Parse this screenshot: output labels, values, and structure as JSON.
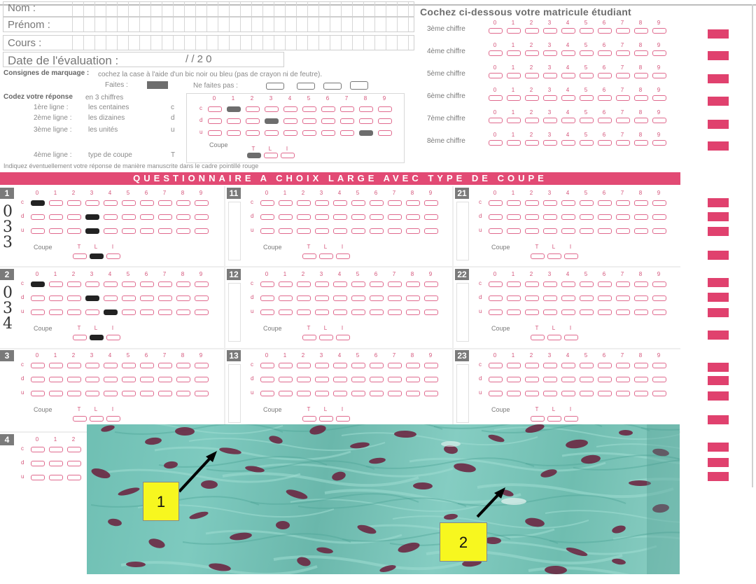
{
  "header": {
    "fields": [
      {
        "label": "Nom :"
      },
      {
        "label": "Prénom :"
      },
      {
        "label": "Cours :"
      }
    ],
    "date_label": "Date de l'évaluation :",
    "date_value": "/     / 2 0",
    "consignes_title": "Consignes de marquage :",
    "consignes_text": "cochez la case à l'aide d'un bic noir ou bleu (pas de crayon ni de feutre).",
    "faites_label": "Faites :",
    "ne_faites_pas_label": "Ne faites pas :",
    "codez_title": "Codez votre réponse",
    "codez_text": "en 3 chiffres",
    "lines": [
      {
        "label": "1ère ligne :",
        "text": "les centaines",
        "letter": "c"
      },
      {
        "label": "2ème ligne :",
        "text": "les dizaines",
        "letter": "d"
      },
      {
        "label": "3ème ligne :",
        "text": "les unités",
        "letter": "u"
      },
      {
        "label": "4ème ligne :",
        "text": "type de coupe",
        "letter": "T"
      }
    ],
    "indiquez_text": "Indiquez éventuellement votre réponse de manière manuscrite dans le cadre pointillé rouge"
  },
  "matricule": {
    "title": "Cochez ci-dessous votre matricule étudiant",
    "digits": [
      "0",
      "1",
      "2",
      "3",
      "4",
      "5",
      "6",
      "7",
      "8",
      "9"
    ],
    "rows": [
      "3ème chiffre",
      "4ème chiffre",
      "5ème chiffre",
      "6ème chiffre",
      "7ème chiffre",
      "8ème chiffre"
    ]
  },
  "banner": "QUESTIONNAIRE A CHOIX LARGE AVEC TYPE DE COUPE",
  "questions": {
    "digits": [
      "0",
      "1",
      "2",
      "3",
      "4",
      "5",
      "6",
      "7",
      "8",
      "9"
    ],
    "row_letters": [
      "c",
      "d",
      "u"
    ],
    "coupe_label": "Coupe",
    "coupe_options": [
      "T",
      "L",
      "I"
    ],
    "numbers": [
      "1",
      "2",
      "3",
      "4",
      "11",
      "12",
      "13",
      "21",
      "22",
      "23"
    ],
    "handwritten": {
      "q1": [
        "0",
        "3",
        "3"
      ],
      "q2": [
        "0",
        "3",
        "4"
      ]
    }
  },
  "photo": {
    "labels": [
      "1",
      "2"
    ]
  },
  "colors": {
    "accent": "#e24a74",
    "marker": "#e0416e",
    "bubble_border": "#e06a8e",
    "yellow_label": "#f7f71f",
    "tissue": "#6fbfb3",
    "nuclei": "#6b1f3c"
  }
}
